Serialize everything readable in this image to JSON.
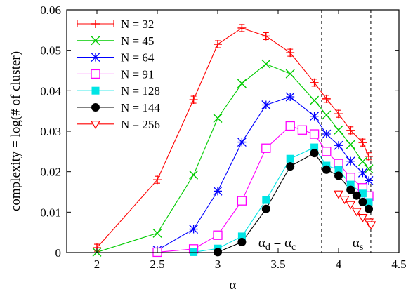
{
  "chart_data": {
    "type": "line",
    "xlabel": "α",
    "ylabel": "complexity = log(# of cluster)",
    "xlim": [
      1.75,
      4.5
    ],
    "ylim": [
      0,
      0.06
    ],
    "xticks": [
      2,
      2.5,
      3,
      3.5,
      4,
      4.5
    ],
    "xtick_labels": [
      "2",
      "2.5",
      "3",
      "3.5",
      "4",
      "4.5"
    ],
    "yticks": [
      0,
      0.01,
      0.02,
      0.03,
      0.04,
      0.05,
      0.06
    ],
    "ytick_labels": [
      "0",
      "0.01",
      "0.02",
      "0.03",
      "0.04",
      "0.05",
      "0.06"
    ],
    "grid": false,
    "legend_position": "top-left",
    "vlines": [
      {
        "x": 3.86,
        "label": "α",
        "sub": "d",
        "label2": " = α",
        "sub2": "c"
      },
      {
        "x": 4.267,
        "label": "α",
        "sub": "s"
      }
    ],
    "series": [
      {
        "name": "N = 32",
        "color": "#ff0000",
        "marker": "plus",
        "x": [
          2,
          2.5,
          2.8,
          3,
          3.2,
          3.4,
          3.6,
          3.8,
          3.9,
          4,
          4.1,
          4.2,
          4.25
        ],
        "y": [
          0.0012,
          0.018,
          0.0378,
          0.0515,
          0.0555,
          0.0535,
          0.0494,
          0.042,
          0.038,
          0.0343,
          0.0302,
          0.0272,
          0.0238
        ]
      },
      {
        "name": "N = 45",
        "color": "#00cc00",
        "marker": "x",
        "x": [
          2,
          2.5,
          2.8,
          3,
          3.2,
          3.4,
          3.6,
          3.8,
          3.9,
          4,
          4.1,
          4.2,
          4.25
        ],
        "y": [
          0.0001,
          0.0048,
          0.0192,
          0.0332,
          0.0418,
          0.0466,
          0.0442,
          0.0376,
          0.034,
          0.0303,
          0.0267,
          0.0225,
          0.0207
        ]
      },
      {
        "name": "N = 64",
        "color": "#0000ff",
        "marker": "star",
        "x": [
          2.5,
          2.8,
          3,
          3.2,
          3.4,
          3.6,
          3.8,
          3.9,
          4,
          4.1,
          4.2,
          4.25
        ],
        "y": [
          0.0006,
          0.0058,
          0.0152,
          0.0273,
          0.0365,
          0.0385,
          0.0337,
          0.0293,
          0.0265,
          0.0226,
          0.0197,
          0.0178
        ]
      },
      {
        "name": "N = 91",
        "color": "#ff00ff",
        "marker": "square-open",
        "x": [
          2.5,
          2.8,
          3,
          3.2,
          3.4,
          3.6,
          3.7,
          3.8,
          3.9,
          4,
          4.1,
          4.2,
          4.25
        ],
        "y": [
          0.0001,
          0.0009,
          0.0043,
          0.0128,
          0.0258,
          0.0313,
          0.0303,
          0.0293,
          0.025,
          0.022,
          0.0186,
          0.016,
          0.014
        ]
      },
      {
        "name": "N = 128",
        "color": "#00e5e5",
        "marker": "square-filled",
        "x": [
          2.8,
          3,
          3.2,
          3.4,
          3.6,
          3.8,
          3.9,
          4,
          4.1,
          4.2,
          4.25
        ],
        "y": [
          0.0001,
          0.001,
          0.004,
          0.013,
          0.0232,
          0.026,
          0.0215,
          0.0205,
          0.0168,
          0.0146,
          0.0125
        ]
      },
      {
        "name": "N = 144",
        "color": "#000000",
        "marker": "circle-filled",
        "x": [
          3,
          3.2,
          3.4,
          3.6,
          3.8,
          3.9,
          4,
          4.1,
          4.15,
          4.2,
          4.25
        ],
        "y": [
          0.0001,
          0.0026,
          0.0108,
          0.0213,
          0.0246,
          0.0205,
          0.019,
          0.0155,
          0.0141,
          0.0125,
          0.0108
        ]
      },
      {
        "name": "N = 256",
        "color": "#ff0000",
        "marker": "triangle-down-open",
        "x": [
          4,
          4.05,
          4.1,
          4.15,
          4.2,
          4.25,
          4.27
        ],
        "y": [
          0.0145,
          0.0132,
          0.0119,
          0.0102,
          0.0087,
          0.0076,
          0.0069
        ]
      }
    ]
  }
}
